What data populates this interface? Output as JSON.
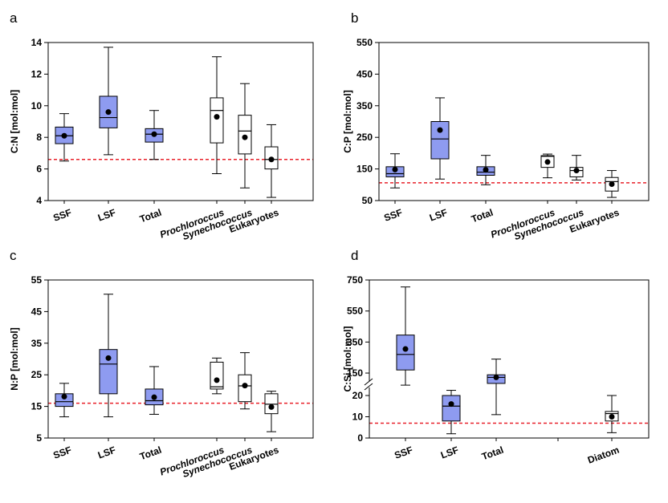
{
  "chart_data": [
    {
      "type": "box",
      "label": "a",
      "ylabel": "C:N [mol:mol]",
      "categories": [
        "SSF",
        "LSF",
        "Total",
        "Prochloroccus",
        "Synechococcus",
        "Eukaryotes"
      ],
      "category_italic": [
        false,
        false,
        false,
        true,
        true,
        false
      ],
      "boxes": [
        {
          "whislo": 6.5,
          "q1": 7.6,
          "med": 8.1,
          "q3": 8.65,
          "whishi": 9.5,
          "mean": 8.1,
          "fill": "#8e9bf0"
        },
        {
          "whislo": 6.9,
          "q1": 8.6,
          "med": 9.25,
          "q3": 10.6,
          "whishi": 13.7,
          "mean": 9.6,
          "fill": "#8e9bf0"
        },
        {
          "whislo": 6.6,
          "q1": 7.7,
          "med": 8.2,
          "q3": 8.55,
          "whishi": 9.7,
          "mean": 8.2,
          "fill": "#8e9bf0"
        },
        {
          "whislo": 5.7,
          "q1": 7.65,
          "med": 9.7,
          "q3": 10.5,
          "whishi": 13.1,
          "mean": 9.3,
          "fill": "#ffffff"
        },
        {
          "whislo": 4.8,
          "q1": 6.95,
          "med": 8.4,
          "q3": 9.4,
          "whishi": 11.4,
          "mean": 8.0,
          "fill": "#ffffff"
        },
        {
          "whislo": 4.2,
          "q1": 6.0,
          "med": 6.6,
          "q3": 7.4,
          "whishi": 8.8,
          "mean": 6.6,
          "fill": "#ffffff"
        }
      ],
      "ylim": [
        4,
        14
      ],
      "yticks": [
        4,
        6,
        8,
        10,
        12,
        14
      ],
      "reference_line": {
        "value": 6.6,
        "color": "#e8202a"
      }
    },
    {
      "type": "box",
      "label": "b",
      "ylabel": "C:P [mol:mol]",
      "categories": [
        "SSF",
        "LSF",
        "Total",
        "Prochloroccus",
        "Synechococcus",
        "Eukaryotes"
      ],
      "category_italic": [
        false,
        false,
        false,
        true,
        true,
        false
      ],
      "boxes": [
        {
          "whislo": 90,
          "q1": 125,
          "med": 135,
          "q3": 157,
          "whishi": 198,
          "mean": 148,
          "fill": "#8e9bf0"
        },
        {
          "whislo": 118,
          "q1": 182,
          "med": 245,
          "q3": 300,
          "whishi": 375,
          "mean": 273,
          "fill": "#8e9bf0"
        },
        {
          "whislo": 100,
          "q1": 130,
          "med": 140,
          "q3": 157,
          "whishi": 193,
          "mean": 147,
          "fill": "#8e9bf0"
        },
        {
          "whislo": 122,
          "q1": 155,
          "med": 190,
          "q3": 192,
          "whishi": 197,
          "mean": 172,
          "fill": "#ffffff"
        },
        {
          "whislo": 115,
          "q1": 125,
          "med": 145,
          "q3": 155,
          "whishi": 193,
          "mean": 145,
          "fill": "#ffffff"
        },
        {
          "whislo": 60,
          "q1": 80,
          "med": 110,
          "q3": 123,
          "whishi": 145,
          "mean": 102,
          "fill": "#ffffff"
        }
      ],
      "ylim": [
        50,
        550
      ],
      "yticks": [
        50,
        150,
        250,
        350,
        450,
        550
      ],
      "reference_line": {
        "value": 106,
        "color": "#e8202a"
      }
    },
    {
      "type": "box",
      "label": "c",
      "ylabel": "N:P [mol:mol]",
      "categories": [
        "SSF",
        "LSF",
        "Total",
        "Prochloroccus",
        "Synechococcus",
        "Eukaryotes"
      ],
      "category_italic": [
        false,
        false,
        false,
        true,
        true,
        false
      ],
      "boxes": [
        {
          "whislo": 11.7,
          "q1": 15,
          "med": 16.5,
          "q3": 19,
          "whishi": 22.3,
          "mean": 18.1,
          "fill": "#8e9bf0"
        },
        {
          "whislo": 11.7,
          "q1": 19,
          "med": 28.4,
          "q3": 33,
          "whishi": 50.5,
          "mean": 30.3,
          "fill": "#8e9bf0"
        },
        {
          "whislo": 12.5,
          "q1": 15.5,
          "med": 16.8,
          "q3": 20.5,
          "whishi": 27.6,
          "mean": 17.9,
          "fill": "#8e9bf0"
        },
        {
          "whislo": 19,
          "q1": 20.5,
          "med": 21.2,
          "q3": 29,
          "whishi": 30.3,
          "mean": 23.3,
          "fill": "#ffffff"
        },
        {
          "whislo": 14.2,
          "q1": 16.5,
          "med": 21.5,
          "q3": 25,
          "whishi": 32,
          "mean": 21.6,
          "fill": "#ffffff"
        },
        {
          "whislo": 7,
          "q1": 12.7,
          "med": 15.7,
          "q3": 19,
          "whishi": 19.8,
          "mean": 14.8,
          "fill": "#ffffff"
        }
      ],
      "ylim": [
        5,
        55
      ],
      "yticks": [
        5,
        15,
        25,
        35,
        45,
        55
      ],
      "reference_line": {
        "value": 16,
        "color": "#e8202a"
      }
    },
    {
      "type": "box",
      "label": "d",
      "ylabel": "C:Si [mol:mol]",
      "categories": [
        "SSF",
        "LSF",
        "Total",
        null,
        "Diatom"
      ],
      "category_italic": [
        false,
        false,
        false,
        false,
        false
      ],
      "boxes": [
        {
          "whislo": 80,
          "q1": 170,
          "med": 270,
          "q3": 395,
          "whishi": 705,
          "mean": 305,
          "fill": "#8e9bf0"
        },
        {
          "whislo": 2,
          "q1": 8,
          "med": 15,
          "q3": 20,
          "whishi": 50,
          "mean": 16,
          "fill": "#8e9bf0"
        },
        {
          "whislo": 11,
          "q1": 90,
          "med": 125,
          "q3": 140,
          "whishi": 240,
          "mean": 125,
          "fill": "#8e9bf0"
        },
        null,
        {
          "whislo": 2.5,
          "q1": 8,
          "med": 11.5,
          "q3": 12.5,
          "whishi": 20,
          "mean": 10,
          "fill": "#ffffff"
        }
      ],
      "ylim": [
        0,
        750
      ],
      "axis_break": [
        20,
        150
      ],
      "yticks": [
        0,
        10,
        20,
        150,
        350,
        550,
        750
      ],
      "reference_line": {
        "value": 7,
        "color": "#e8202a"
      }
    }
  ]
}
